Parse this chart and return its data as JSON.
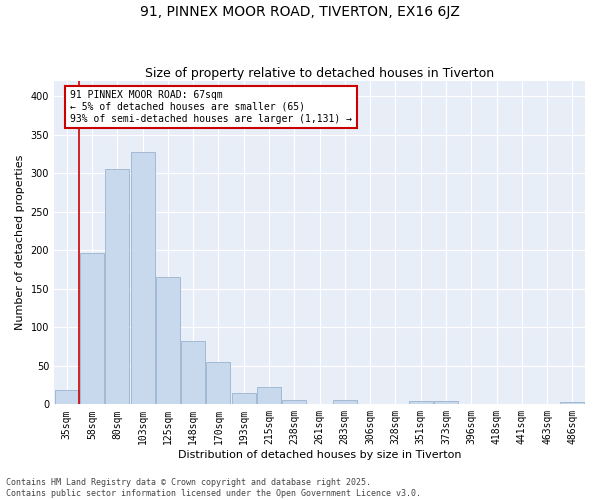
{
  "title": "91, PINNEX MOOR ROAD, TIVERTON, EX16 6JZ",
  "subtitle": "Size of property relative to detached houses in Tiverton",
  "xlabel": "Distribution of detached houses by size in Tiverton",
  "ylabel": "Number of detached properties",
  "bar_color": "#c8d9ee",
  "bar_edge_color": "#9ab3d0",
  "background_color": "#e8eef8",
  "grid_color": "#ffffff",
  "categories": [
    "35sqm",
    "58sqm",
    "80sqm",
    "103sqm",
    "125sqm",
    "148sqm",
    "170sqm",
    "193sqm",
    "215sqm",
    "238sqm",
    "261sqm",
    "283sqm",
    "306sqm",
    "328sqm",
    "351sqm",
    "373sqm",
    "396sqm",
    "418sqm",
    "441sqm",
    "463sqm",
    "486sqm"
  ],
  "values": [
    18,
    197,
    305,
    328,
    165,
    82,
    55,
    15,
    22,
    6,
    0,
    6,
    0,
    0,
    4,
    4,
    0,
    0,
    0,
    0,
    3
  ],
  "ylim": [
    0,
    420
  ],
  "yticks": [
    0,
    50,
    100,
    150,
    200,
    250,
    300,
    350,
    400
  ],
  "vline_color": "#cc0000",
  "vline_x_pos": 0.5,
  "annotation_text": "91 PINNEX MOOR ROAD: 67sqm\n← 5% of detached houses are smaller (65)\n93% of semi-detached houses are larger (1,131) →",
  "footer_text": "Contains HM Land Registry data © Crown copyright and database right 2025.\nContains public sector information licensed under the Open Government Licence v3.0.",
  "title_fontsize": 10,
  "subtitle_fontsize": 9,
  "axis_label_fontsize": 8,
  "tick_fontsize": 7,
  "annotation_fontsize": 7,
  "footer_fontsize": 6
}
